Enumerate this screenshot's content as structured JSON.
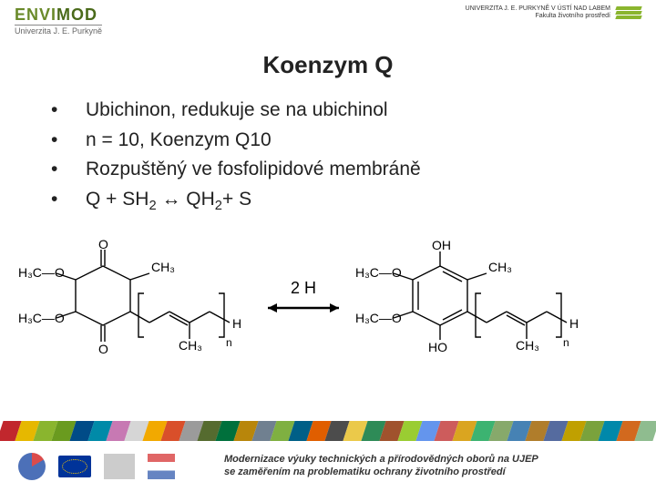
{
  "header": {
    "brand_part1": "ENVI",
    "brand_part2": "MOD",
    "subline": "Univerzita J. E. Purkyně",
    "uni_right_line1": "UNIVERZITA J. E. PURKYNĚ V ÚSTÍ NAD LABEM",
    "uni_right_line2": "Fakulta životního prostředí"
  },
  "title": "Koenzym Q",
  "bullets": [
    {
      "text": "Ubichinon, redukuje se na ubichinol"
    },
    {
      "text": "n = 10, Koenzym Q10"
    },
    {
      "text": "Rozpuštěný ve fosfolipidové membráně"
    },
    {
      "html": "Q + SH<sub>2</sub> ↔ QH<sub>2</sub>+ S"
    }
  ],
  "chemistry": {
    "arrow_label": "2 H",
    "left": {
      "top_label": "O",
      "bottom_label": "O",
      "methoxy1": "H₃C—O",
      "methoxy2": "H₃C—O",
      "methyl": "CH₃",
      "chain_ch3": "CH₃",
      "n": "n",
      "h": "H"
    },
    "right": {
      "top_label": "OH",
      "bottom_label": "HO",
      "methoxy1": "H₃C—O",
      "methoxy2": "H₃C—O",
      "methyl": "CH₃",
      "chain_ch3": "CH₃",
      "n": "n",
      "h": "H"
    },
    "stroke": "#000000",
    "stroke_width": 1.4,
    "font_size": 14
  },
  "footer": {
    "line1": "Modernizace výuky technických a přírodovědných oborů na UJEP",
    "line2": "se zaměřením na problematiku ochrany životního prostředí"
  },
  "stripe_colors": [
    "#c1272d",
    "#e6b800",
    "#8ab52e",
    "#6a9b1f",
    "#004b87",
    "#008aa8",
    "#c779b3",
    "#d6d6d6",
    "#f2a900",
    "#d94f2a",
    "#9b9b9b",
    "#556b2f",
    "#00703c",
    "#b8860b",
    "#708090",
    "#7fb041",
    "#005f87",
    "#e05e00",
    "#4c4c4c",
    "#ebc94a",
    "#2e8b57",
    "#a0522d",
    "#9acd32",
    "#6495ed",
    "#cd5c5c",
    "#daa520",
    "#3cb371",
    "#87a96b",
    "#4682b4",
    "#b07d2b",
    "#556b9f",
    "#c0a000",
    "#7aa23c",
    "#0088aa",
    "#d2691e",
    "#8fbc8f"
  ]
}
